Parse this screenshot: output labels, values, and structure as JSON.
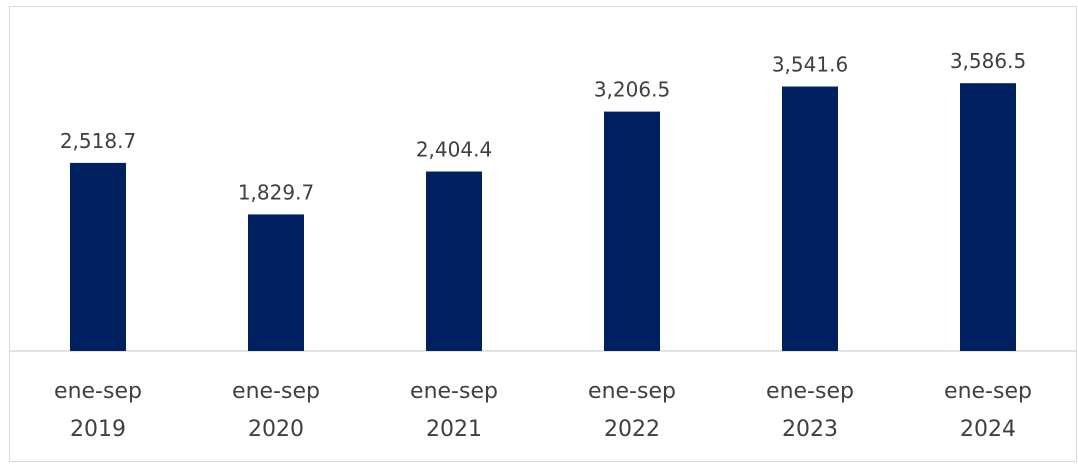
{
  "chart_data": {
    "type": "bar",
    "categories": [
      [
        "ene-sep",
        "2019"
      ],
      [
        "ene-sep",
        "2020"
      ],
      [
        "ene-sep",
        "2021"
      ],
      [
        "ene-sep",
        "2022"
      ],
      [
        "ene-sep",
        "2023"
      ],
      [
        "ene-sep",
        "2024"
      ]
    ],
    "values": [
      2518.7,
      1829.7,
      2404.4,
      3206.5,
      3541.6,
      3586.5
    ],
    "data_labels": [
      "2,518.7",
      "1,829.7",
      "2,404.4",
      "3,206.5",
      "3,541.6",
      "3,586.5"
    ],
    "title": "",
    "xlabel": "",
    "ylabel": "",
    "ylim": [
      0,
      4000
    ],
    "grid": false,
    "legend": "none",
    "colors": {
      "bar": "#002060",
      "axis": "#d9d9d9",
      "text": "#404040",
      "border": "#d9d9d9"
    }
  }
}
